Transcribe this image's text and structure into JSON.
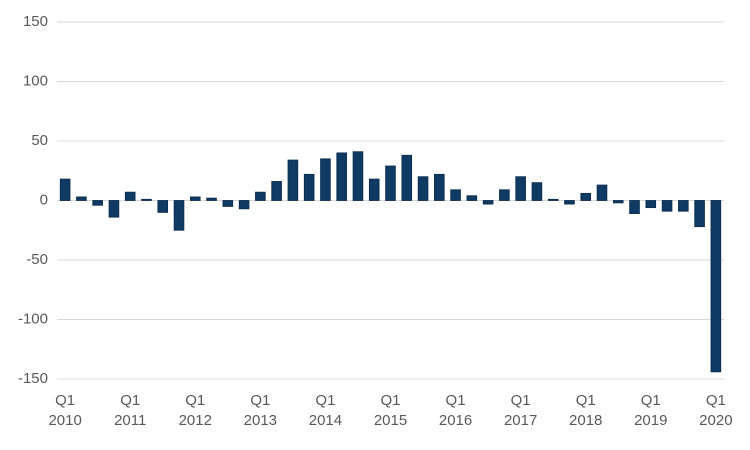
{
  "chart_data": {
    "type": "bar",
    "categories": [
      "Q1\n2010",
      null,
      null,
      null,
      "Q1\n2011",
      null,
      null,
      null,
      "Q1\n2012",
      null,
      null,
      null,
      "Q1\n2013",
      null,
      null,
      null,
      "Q1\n2014",
      null,
      null,
      null,
      "Q1\n2015",
      null,
      null,
      null,
      "Q1\n2016",
      null,
      null,
      null,
      "Q1\n2017",
      null,
      null,
      null,
      "Q1\n2018",
      null,
      null,
      null,
      "Q1\n2019",
      null,
      null,
      null,
      "Q1\n2020"
    ],
    "values": [
      18,
      3,
      -4,
      -14,
      7,
      1,
      -10,
      -25,
      3,
      2,
      -5,
      -7,
      7,
      16,
      34,
      22,
      35,
      40,
      41,
      18,
      29,
      38,
      20,
      22,
      9,
      4,
      -3,
      9,
      20,
      15,
      1,
      -3,
      6,
      13,
      -2,
      -11,
      -6,
      -9,
      -9,
      -22,
      -144
    ],
    "color": "#0e3a63",
    "ylim": [
      -150,
      150
    ],
    "yticks": [
      -150,
      -100,
      -50,
      0,
      50,
      100,
      150
    ],
    "grid": true
  }
}
